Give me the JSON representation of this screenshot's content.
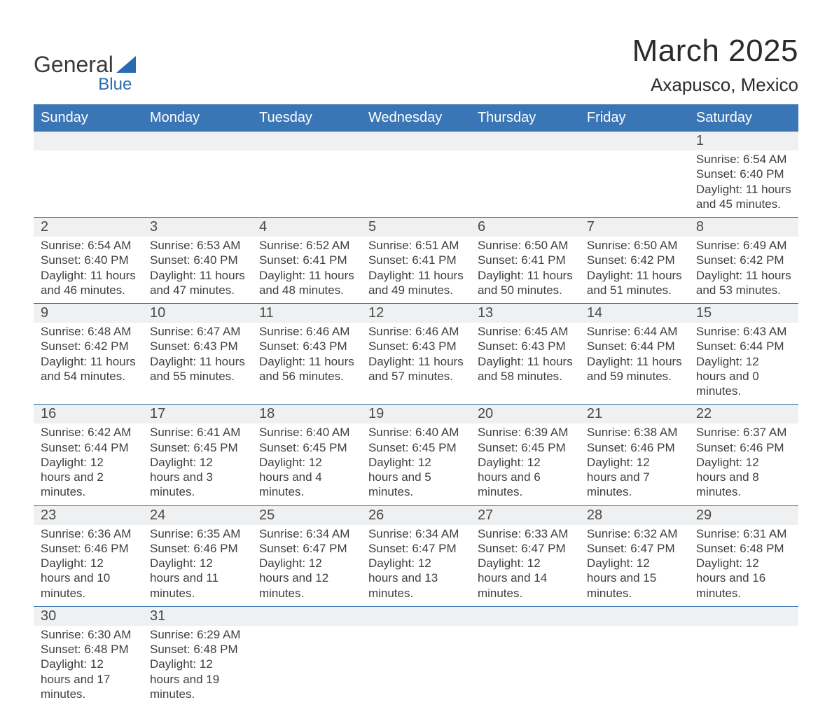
{
  "branding": {
    "logo_word1": "General",
    "logo_word2": "Blue",
    "logo_color_primary": "#3a3a3a",
    "logo_color_accent": "#2a6bb0"
  },
  "header": {
    "title": "March 2025",
    "location": "Axapusco, Mexico"
  },
  "styling": {
    "header_bg": "#3a76b5",
    "header_text": "#ffffff",
    "daynum_bg": "#eff0f1",
    "row_divider": "#3a76b5",
    "body_text": "#3f3f3f",
    "page_bg": "#ffffff",
    "title_fontsize_pt": 33,
    "location_fontsize_pt": 20,
    "dayheader_fontsize_pt": 15,
    "daynum_fontsize_pt": 15,
    "cell_fontsize_pt": 13
  },
  "day_headers": [
    "Sunday",
    "Monday",
    "Tuesday",
    "Wednesday",
    "Thursday",
    "Friday",
    "Saturday"
  ],
  "weeks": [
    [
      null,
      null,
      null,
      null,
      null,
      null,
      {
        "n": "1",
        "sunrise": "Sunrise: 6:54 AM",
        "sunset": "Sunset: 6:40 PM",
        "daylight": "Daylight: 11 hours and 45 minutes."
      }
    ],
    [
      {
        "n": "2",
        "sunrise": "Sunrise: 6:54 AM",
        "sunset": "Sunset: 6:40 PM",
        "daylight": "Daylight: 11 hours and 46 minutes."
      },
      {
        "n": "3",
        "sunrise": "Sunrise: 6:53 AM",
        "sunset": "Sunset: 6:40 PM",
        "daylight": "Daylight: 11 hours and 47 minutes."
      },
      {
        "n": "4",
        "sunrise": "Sunrise: 6:52 AM",
        "sunset": "Sunset: 6:41 PM",
        "daylight": "Daylight: 11 hours and 48 minutes."
      },
      {
        "n": "5",
        "sunrise": "Sunrise: 6:51 AM",
        "sunset": "Sunset: 6:41 PM",
        "daylight": "Daylight: 11 hours and 49 minutes."
      },
      {
        "n": "6",
        "sunrise": "Sunrise: 6:50 AM",
        "sunset": "Sunset: 6:41 PM",
        "daylight": "Daylight: 11 hours and 50 minutes."
      },
      {
        "n": "7",
        "sunrise": "Sunrise: 6:50 AM",
        "sunset": "Sunset: 6:42 PM",
        "daylight": "Daylight: 11 hours and 51 minutes."
      },
      {
        "n": "8",
        "sunrise": "Sunrise: 6:49 AM",
        "sunset": "Sunset: 6:42 PM",
        "daylight": "Daylight: 11 hours and 53 minutes."
      }
    ],
    [
      {
        "n": "9",
        "sunrise": "Sunrise: 6:48 AM",
        "sunset": "Sunset: 6:42 PM",
        "daylight": "Daylight: 11 hours and 54 minutes."
      },
      {
        "n": "10",
        "sunrise": "Sunrise: 6:47 AM",
        "sunset": "Sunset: 6:43 PM",
        "daylight": "Daylight: 11 hours and 55 minutes."
      },
      {
        "n": "11",
        "sunrise": "Sunrise: 6:46 AM",
        "sunset": "Sunset: 6:43 PM",
        "daylight": "Daylight: 11 hours and 56 minutes."
      },
      {
        "n": "12",
        "sunrise": "Sunrise: 6:46 AM",
        "sunset": "Sunset: 6:43 PM",
        "daylight": "Daylight: 11 hours and 57 minutes."
      },
      {
        "n": "13",
        "sunrise": "Sunrise: 6:45 AM",
        "sunset": "Sunset: 6:43 PM",
        "daylight": "Daylight: 11 hours and 58 minutes."
      },
      {
        "n": "14",
        "sunrise": "Sunrise: 6:44 AM",
        "sunset": "Sunset: 6:44 PM",
        "daylight": "Daylight: 11 hours and 59 minutes."
      },
      {
        "n": "15",
        "sunrise": "Sunrise: 6:43 AM",
        "sunset": "Sunset: 6:44 PM",
        "daylight": "Daylight: 12 hours and 0 minutes."
      }
    ],
    [
      {
        "n": "16",
        "sunrise": "Sunrise: 6:42 AM",
        "sunset": "Sunset: 6:44 PM",
        "daylight": "Daylight: 12 hours and 2 minutes."
      },
      {
        "n": "17",
        "sunrise": "Sunrise: 6:41 AM",
        "sunset": "Sunset: 6:45 PM",
        "daylight": "Daylight: 12 hours and 3 minutes."
      },
      {
        "n": "18",
        "sunrise": "Sunrise: 6:40 AM",
        "sunset": "Sunset: 6:45 PM",
        "daylight": "Daylight: 12 hours and 4 minutes."
      },
      {
        "n": "19",
        "sunrise": "Sunrise: 6:40 AM",
        "sunset": "Sunset: 6:45 PM",
        "daylight": "Daylight: 12 hours and 5 minutes."
      },
      {
        "n": "20",
        "sunrise": "Sunrise: 6:39 AM",
        "sunset": "Sunset: 6:45 PM",
        "daylight": "Daylight: 12 hours and 6 minutes."
      },
      {
        "n": "21",
        "sunrise": "Sunrise: 6:38 AM",
        "sunset": "Sunset: 6:46 PM",
        "daylight": "Daylight: 12 hours and 7 minutes."
      },
      {
        "n": "22",
        "sunrise": "Sunrise: 6:37 AM",
        "sunset": "Sunset: 6:46 PM",
        "daylight": "Daylight: 12 hours and 8 minutes."
      }
    ],
    [
      {
        "n": "23",
        "sunrise": "Sunrise: 6:36 AM",
        "sunset": "Sunset: 6:46 PM",
        "daylight": "Daylight: 12 hours and 10 minutes."
      },
      {
        "n": "24",
        "sunrise": "Sunrise: 6:35 AM",
        "sunset": "Sunset: 6:46 PM",
        "daylight": "Daylight: 12 hours and 11 minutes."
      },
      {
        "n": "25",
        "sunrise": "Sunrise: 6:34 AM",
        "sunset": "Sunset: 6:47 PM",
        "daylight": "Daylight: 12 hours and 12 minutes."
      },
      {
        "n": "26",
        "sunrise": "Sunrise: 6:34 AM",
        "sunset": "Sunset: 6:47 PM",
        "daylight": "Daylight: 12 hours and 13 minutes."
      },
      {
        "n": "27",
        "sunrise": "Sunrise: 6:33 AM",
        "sunset": "Sunset: 6:47 PM",
        "daylight": "Daylight: 12 hours and 14 minutes."
      },
      {
        "n": "28",
        "sunrise": "Sunrise: 6:32 AM",
        "sunset": "Sunset: 6:47 PM",
        "daylight": "Daylight: 12 hours and 15 minutes."
      },
      {
        "n": "29",
        "sunrise": "Sunrise: 6:31 AM",
        "sunset": "Sunset: 6:48 PM",
        "daylight": "Daylight: 12 hours and 16 minutes."
      }
    ],
    [
      {
        "n": "30",
        "sunrise": "Sunrise: 6:30 AM",
        "sunset": "Sunset: 6:48 PM",
        "daylight": "Daylight: 12 hours and 17 minutes."
      },
      {
        "n": "31",
        "sunrise": "Sunrise: 6:29 AM",
        "sunset": "Sunset: 6:48 PM",
        "daylight": "Daylight: 12 hours and 19 minutes."
      },
      null,
      null,
      null,
      null,
      null
    ]
  ]
}
